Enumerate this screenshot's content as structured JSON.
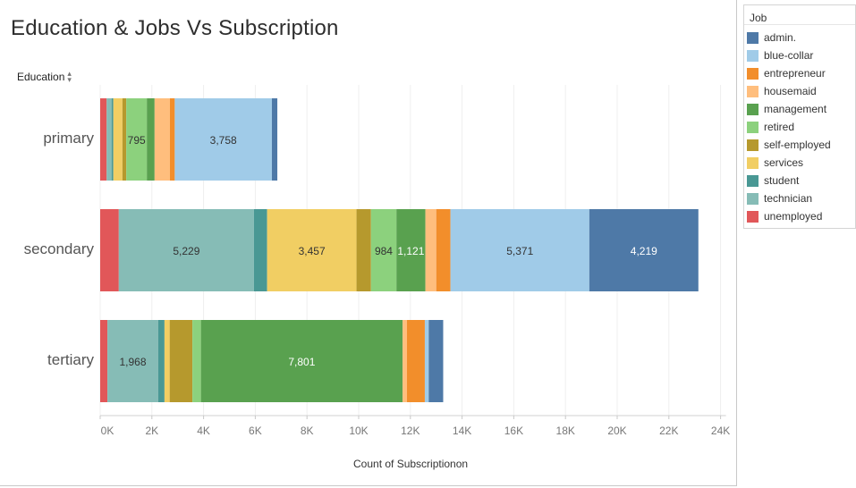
{
  "title": "Education  & Jobs Vs Subscription",
  "y_field_label": "Education",
  "legend_title": "Job",
  "colors": {
    "admin.": "#4e79a7",
    "blue-collar": "#a0cbe8",
    "entrepreneur": "#f28e2b",
    "housemaid": "#ffbe7d",
    "management": "#59a14f",
    "retired": "#8cd17d",
    "self-employed": "#b6992d",
    "services": "#f1ce63",
    "student": "#499894",
    "technician": "#86bcb6",
    "unemployed": "#e15759"
  },
  "chart_data": {
    "type": "bar",
    "orientation": "horizontal",
    "stacked": true,
    "title": "Education  & Jobs Vs Subscription",
    "xlabel": "Count of Subscriptionon",
    "ylabel": "Education",
    "xlim": [
      0,
      24000
    ],
    "x_ticks": [
      0,
      2000,
      4000,
      6000,
      8000,
      10000,
      12000,
      14000,
      16000,
      18000,
      20000,
      22000,
      24000
    ],
    "x_tick_labels": [
      "0K",
      "2K",
      "4K",
      "6K",
      "8K",
      "10K",
      "12K",
      "14K",
      "16K",
      "18K",
      "20K",
      "22K",
      "24K"
    ],
    "grid": true,
    "legend_position": "right",
    "categories": [
      "primary",
      "secondary",
      "tertiary"
    ],
    "stack_order": [
      "unemployed",
      "technician",
      "student",
      "services",
      "self-employed",
      "retired",
      "management",
      "housemaid",
      "entrepreneur",
      "blue-collar",
      "admin."
    ],
    "series": [
      {
        "name": "admin.",
        "values": [
          210,
          4219,
          560
        ]
      },
      {
        "name": "blue-collar",
        "values": [
          3758,
          5371,
          150
        ]
      },
      {
        "name": "entrepreneur",
        "values": [
          190,
          550,
          690
        ]
      },
      {
        "name": "housemaid",
        "values": [
          590,
          420,
          170
        ]
      },
      {
        "name": "management",
        "values": [
          300,
          1121,
          7801
        ]
      },
      {
        "name": "retired",
        "values": [
          795,
          984,
          330
        ]
      },
      {
        "name": "self-employed",
        "values": [
          150,
          560,
          880
        ]
      },
      {
        "name": "services",
        "values": [
          350,
          3457,
          200
        ]
      },
      {
        "name": "student",
        "values": [
          70,
          510,
          240
        ]
      },
      {
        "name": "technician",
        "values": [
          190,
          5229,
          1968
        ]
      },
      {
        "name": "unemployed",
        "values": [
          250,
          720,
          280
        ]
      }
    ],
    "data_labels": [
      {
        "category": "primary",
        "series": "retired",
        "text": "795"
      },
      {
        "category": "primary",
        "series": "blue-collar",
        "text": "3,758"
      },
      {
        "category": "secondary",
        "series": "technician",
        "text": "5,229"
      },
      {
        "category": "secondary",
        "series": "services",
        "text": "3,457"
      },
      {
        "category": "secondary",
        "series": "retired",
        "text": "984"
      },
      {
        "category": "secondary",
        "series": "management",
        "text": "1,121"
      },
      {
        "category": "secondary",
        "series": "blue-collar",
        "text": "5,371"
      },
      {
        "category": "secondary",
        "series": "admin.",
        "text": "4,219"
      },
      {
        "category": "tertiary",
        "series": "technician",
        "text": "1,968"
      },
      {
        "category": "tertiary",
        "series": "management",
        "text": "7,801"
      }
    ]
  },
  "legend_items": [
    "admin.",
    "blue-collar",
    "entrepreneur",
    "housemaid",
    "management",
    "retired",
    "self-employed",
    "services",
    "student",
    "technician",
    "unemployed"
  ]
}
